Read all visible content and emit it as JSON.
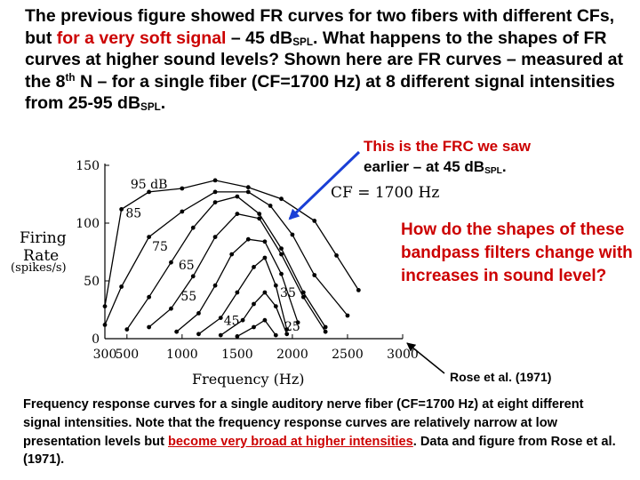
{
  "intro": {
    "part1": "The previous figure showed FR curves for two fibers with different CFs, but ",
    "red": "for a very soft signal",
    "part2": " – 45 dB",
    "sub1": "SPL",
    "part3": ". What happens to the shapes of FR curves at higher sound levels? Shown here are FR curves – measured at the 8",
    "sup": "th",
    "part4": " N – for a single fiber (CF=1700 Hz) at 8 different signal intensities from 25-95 dB",
    "sub2": "SPL",
    "part5": "."
  },
  "callout": {
    "line1": "This is the FRC we saw",
    "line2a": "earlier – at 45 dB",
    "line2sub": "SPL",
    "line2b": "."
  },
  "question": "How do the shapes of these bandpass filters change with increases in sound level?",
  "credit": "Rose et al. (1971)",
  "caption": {
    "part1": "Frequency response curves for a single auditory nerve fiber (CF=1700 Hz) at eight different signal intensities. Note that the frequency response curves are relatively narrow at low presentation levels but ",
    "underlined": "become very broad at higher intensities",
    "part2": ".  Data and figure from Rose et al. (1971)."
  },
  "colors": {
    "accent": "#cc0000",
    "arrow": "#1a3fd6"
  },
  "chart_data": {
    "type": "line",
    "title": "CF = 1700 Hz",
    "xlabel": "Frequency (Hz)",
    "ylabel_line1": "Firing",
    "ylabel_line2": "Rate",
    "ylabel_line3": "(spikes/s)",
    "xlim": [
      300,
      3000
    ],
    "ylim": [
      0,
      150
    ],
    "xticks": [
      300,
      500,
      1000,
      1500,
      2000,
      2500,
      3000
    ],
    "yticks": [
      0,
      50,
      100,
      150
    ],
    "grid": false,
    "series": [
      {
        "name": "95 dB",
        "label_at": [
          700,
          130
        ],
        "x": [
          300,
          450,
          700,
          1000,
          1300,
          1600,
          1900,
          2200,
          2400,
          2600
        ],
        "y": [
          28,
          112,
          127,
          130,
          137,
          131,
          121,
          102,
          72,
          42
        ]
      },
      {
        "name": "85",
        "label_at": [
          560,
          105
        ],
        "x": [
          300,
          450,
          700,
          1000,
          1300,
          1600,
          1800,
          2000,
          2200,
          2500
        ],
        "y": [
          12,
          45,
          88,
          110,
          127,
          127,
          115,
          90,
          55,
          20
        ]
      },
      {
        "name": "75",
        "label_at": [
          800,
          76
        ],
        "x": [
          500,
          700,
          900,
          1100,
          1300,
          1500,
          1700,
          1900,
          2100,
          2300
        ],
        "y": [
          8,
          36,
          66,
          96,
          118,
          123,
          108,
          78,
          40,
          10
        ]
      },
      {
        "name": "65",
        "label_at": [
          1040,
          60
        ],
        "x": [
          700,
          900,
          1100,
          1300,
          1500,
          1700,
          1900,
          2100,
          2300
        ],
        "y": [
          10,
          26,
          54,
          88,
          108,
          104,
          73,
          36,
          6
        ]
      },
      {
        "name": "55",
        "label_at": [
          1060,
          33
        ],
        "x": [
          950,
          1150,
          1300,
          1450,
          1600,
          1750,
          1900,
          2050
        ],
        "y": [
          6,
          22,
          46,
          73,
          86,
          84,
          56,
          14
        ]
      },
      {
        "name": "45",
        "label_at": [
          1450,
          12
        ],
        "x": [
          1150,
          1350,
          1500,
          1650,
          1750,
          1850,
          1950
        ],
        "y": [
          4,
          18,
          40,
          62,
          70,
          46,
          8
        ]
      },
      {
        "name": "35",
        "label_at": [
          1960,
          36
        ],
        "x": [
          1350,
          1550,
          1650,
          1750,
          1850,
          1950
        ],
        "y": [
          3,
          16,
          30,
          40,
          28,
          4
        ]
      },
      {
        "name": "25",
        "label_at": [
          2000,
          7
        ],
        "x": [
          1500,
          1650,
          1750,
          1850
        ],
        "y": [
          2,
          10,
          16,
          3
        ]
      }
    ]
  }
}
